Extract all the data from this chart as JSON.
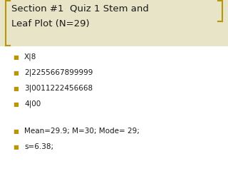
{
  "title_line1": "Section #1  Quiz 1 Stem and",
  "title_line2": "Leaf Plot (N=29)",
  "bullet_color": "#B8960C",
  "text_color": "#1a1a1a",
  "background_color": "#FFFFFF",
  "bracket_color": "#B8960C",
  "title_bg_color": "#e8e4c8",
  "title_fontsize": 9.5,
  "bullet_fontsize": 7.5,
  "bullet_items": [
    "X|8",
    "2|2255667899999",
    "3|0011222456668",
    "4|00"
  ],
  "stat_items": [
    "Mean=29.9; M=30; Mode= 29;",
    "s=6.38;"
  ]
}
